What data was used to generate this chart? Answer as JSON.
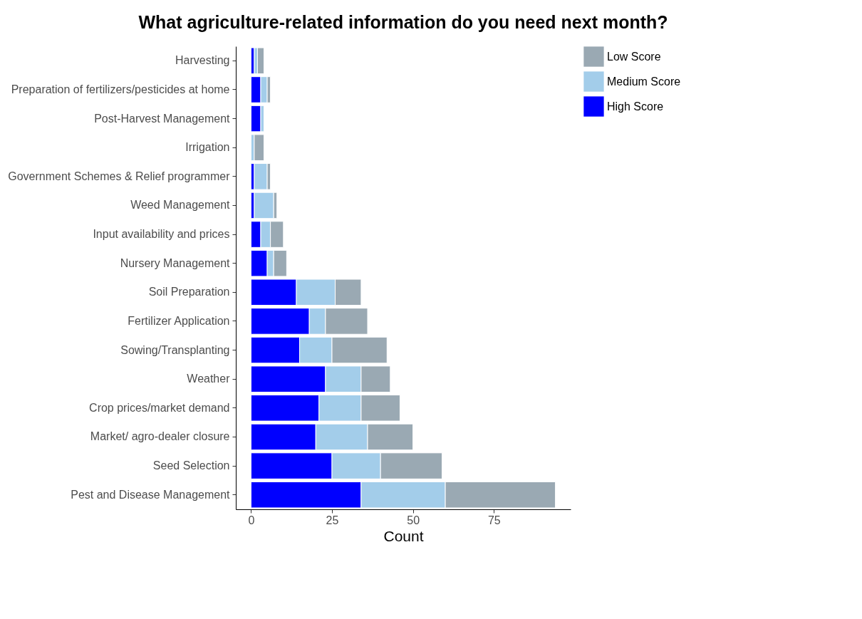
{
  "chart_data": {
    "type": "bar",
    "orientation": "horizontal",
    "stacked": true,
    "title": "What agriculture-related information do you need next month?",
    "xlabel": "Count",
    "categories": [
      "Harvesting",
      "Preparation of fertilizers/pesticides at home",
      "Post-Harvest  Management",
      "Irrigation",
      "Government Schemes & Relief programmer",
      "Weed Management",
      "Input availability and prices",
      "Nursery Management",
      "Soil Preparation",
      "Fertilizer Application",
      "Sowing/Transplanting",
      "Weather",
      "Crop prices/market demand",
      "Market/ agro-dealer closure",
      "Seed Selection",
      "Pest and Disease Management"
    ],
    "series": [
      {
        "name": "High Score",
        "color": "#0000ff",
        "values": [
          1,
          3,
          3,
          0,
          1,
          1,
          3,
          5,
          14,
          18,
          15,
          23,
          21,
          20,
          25,
          34
        ]
      },
      {
        "name": "Medium Score",
        "color": "#a3cdea",
        "values": [
          1,
          2,
          1,
          1,
          4,
          6,
          3,
          2,
          12,
          5,
          10,
          11,
          13,
          16,
          15,
          26
        ]
      },
      {
        "name": "Low Score",
        "color": "#9aa9b3",
        "values": [
          2,
          1,
          0,
          3,
          1,
          1,
          4,
          4,
          8,
          13,
          17,
          9,
          12,
          14,
          19,
          34
        ]
      }
    ],
    "xlim": [
      -4.7,
      98.7
    ],
    "xticks": [
      0,
      25,
      50,
      75
    ],
    "grid": false,
    "legend": "right"
  }
}
